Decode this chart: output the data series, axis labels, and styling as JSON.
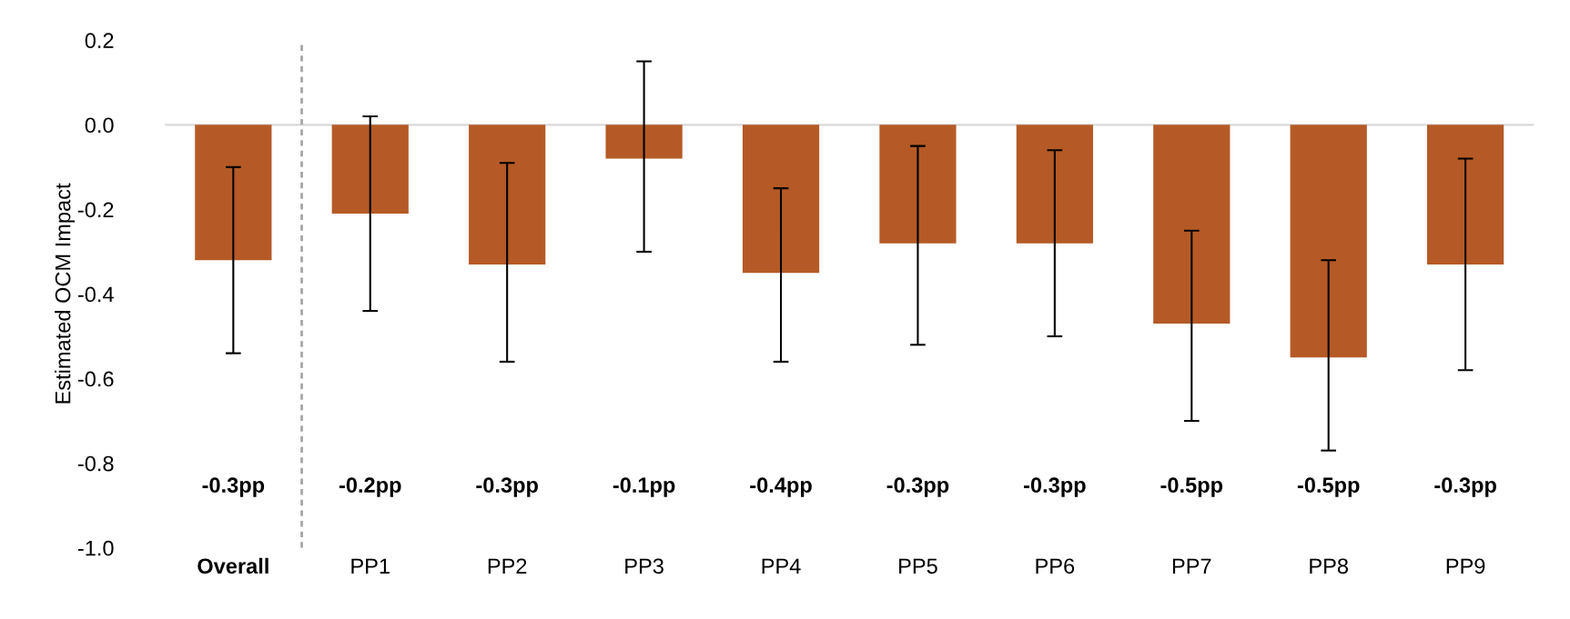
{
  "chart_data": {
    "type": "bar",
    "ylabel": "Estimated OCM Impact",
    "categories": [
      "Overall",
      "PP1",
      "PP2",
      "PP3",
      "PP4",
      "PP5",
      "PP6",
      "PP7",
      "PP8",
      "PP9"
    ],
    "values": [
      -0.32,
      -0.21,
      -0.33,
      -0.08,
      -0.35,
      -0.28,
      -0.28,
      -0.47,
      -0.55,
      -0.33
    ],
    "color": "#b55a26",
    "errors": [
      [
        -0.54,
        -0.1
      ],
      [
        -0.44,
        0.02
      ],
      [
        -0.56,
        -0.09
      ],
      [
        -0.3,
        0.15
      ],
      [
        -0.56,
        -0.15
      ],
      [
        -0.52,
        -0.05
      ],
      [
        -0.5,
        -0.06
      ],
      [
        -0.7,
        -0.25
      ],
      [
        -0.77,
        -0.32
      ],
      [
        -0.58,
        -0.08
      ]
    ],
    "annotations": [
      "-0.3pp",
      "-0.2pp",
      "-0.3pp",
      "-0.1pp",
      "-0.4pp",
      "-0.3pp",
      "-0.3pp",
      "-0.5pp",
      "-0.5pp",
      "-0.3pp"
    ],
    "ylim": [
      -1.0,
      0.2
    ],
    "yticks": [
      {
        "value": -1.0,
        "label": "-1.0"
      },
      {
        "value": -0.8,
        "label": "-0.8"
      },
      {
        "value": -0.6,
        "label": "-0.6"
      },
      {
        "value": -0.4,
        "label": "-0.4"
      },
      {
        "value": -0.2,
        "label": "-0.2"
      },
      {
        "value": 0.0,
        "label": "0.0"
      },
      {
        "value": 0.2,
        "label": "0.2"
      }
    ],
    "ref_lines": [
      {
        "axis": "y",
        "value": 0,
        "color": "#d9d9d9",
        "line_style": "solid"
      }
    ],
    "grid": false,
    "legend": false
  }
}
